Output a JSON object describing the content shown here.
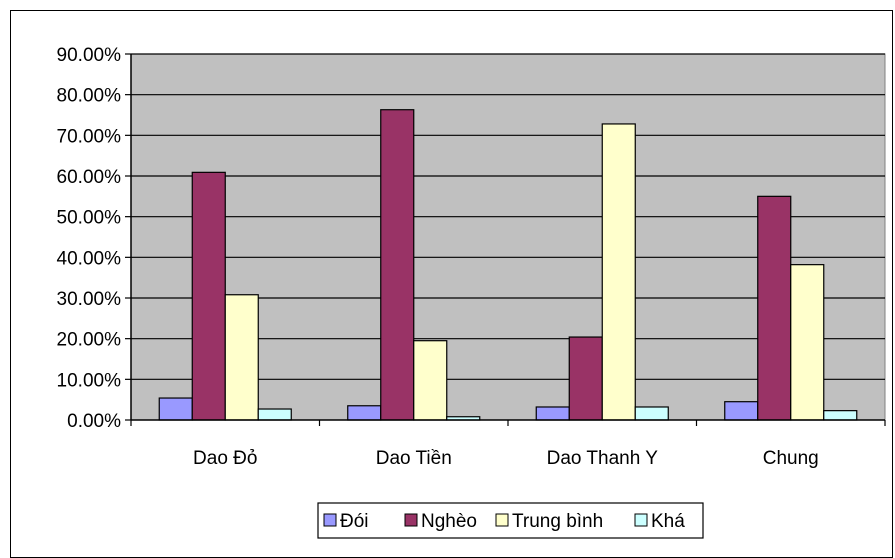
{
  "chart_data": {
    "type": "bar",
    "title": "",
    "xlabel": "",
    "ylabel": "",
    "categories": [
      "Dao Đỏ",
      "Dao Tiền",
      "Dao Thanh Y",
      "Chung"
    ],
    "series": [
      {
        "name": "Đói",
        "color": "#9999FF",
        "values": [
          5.4,
          3.5,
          3.2,
          4.5
        ]
      },
      {
        "name": "Nghèo",
        "color": "#993366",
        "values": [
          60.9,
          76.3,
          20.4,
          55.0
        ]
      },
      {
        "name": "Trung bình",
        "color": "#FFFFCC",
        "values": [
          30.8,
          19.5,
          72.8,
          38.2
        ]
      },
      {
        "name": "Khá",
        "color": "#CCFFFF",
        "values": [
          2.7,
          0.8,
          3.2,
          2.3
        ]
      }
    ],
    "ylim": [
      0,
      90
    ],
    "ytick_values": [
      0,
      10,
      20,
      30,
      40,
      50,
      60,
      70,
      80,
      90
    ],
    "ytick_labels": [
      "0.00%",
      "10.00%",
      "20.00%",
      "30.00%",
      "40.00%",
      "50.00%",
      "60.00%",
      "70.00%",
      "80.00%",
      "90.00%"
    ],
    "grid": true,
    "plot_background": "#C0C0C0",
    "legend_position": "bottom"
  }
}
